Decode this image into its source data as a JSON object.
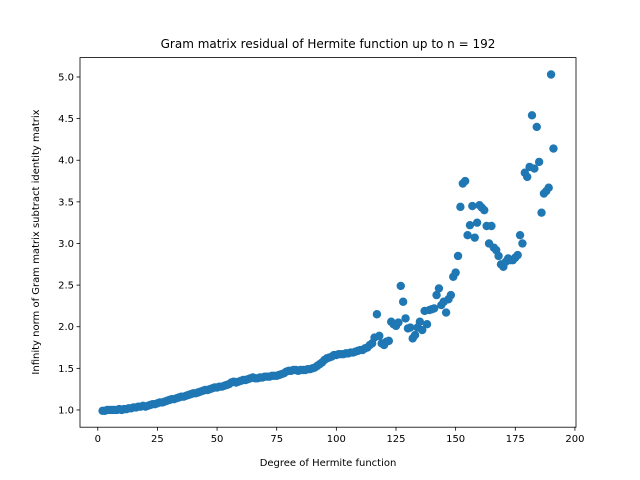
{
  "chart_data": {
    "type": "scatter",
    "title": "Gram matrix residual of Hermite function up to n = 192",
    "x_label": "Degree of Hermite function",
    "y_label": "Infinity norm of Gram matrix subtract identity matrix",
    "color": "#1f77b4",
    "x": [
      2,
      3,
      4,
      5,
      6,
      7,
      8,
      9,
      10,
      11,
      12,
      13,
      14,
      15,
      16,
      17,
      18,
      19,
      20,
      21,
      22,
      23,
      24,
      25,
      26,
      27,
      28,
      29,
      30,
      31,
      32,
      33,
      34,
      35,
      36,
      37,
      38,
      39,
      40,
      41,
      42,
      43,
      44,
      45,
      46,
      47,
      48,
      49,
      50,
      51,
      52,
      53,
      54,
      55,
      56,
      57,
      58,
      59,
      60,
      61,
      62,
      63,
      64,
      65,
      66,
      67,
      68,
      69,
      70,
      71,
      72,
      73,
      74,
      75,
      76,
      77,
      78,
      79,
      80,
      81,
      82,
      83,
      84,
      85,
      86,
      87,
      88,
      89,
      90,
      91,
      92,
      93,
      94,
      95,
      96,
      97,
      98,
      99,
      100,
      101,
      102,
      103,
      104,
      105,
      106,
      107,
      108,
      109,
      110,
      111,
      112,
      113,
      114,
      115,
      116,
      117,
      118,
      119,
      120,
      121,
      122,
      123,
      124,
      125,
      126,
      127,
      128,
      129,
      130,
      131,
      132,
      133,
      134,
      135,
      136,
      137,
      138,
      139,
      140,
      141,
      142,
      143,
      144,
      145,
      146,
      147,
      148,
      149,
      150,
      151,
      152,
      153,
      154,
      155,
      156,
      157,
      158,
      159,
      160,
      161,
      162,
      163,
      164,
      165,
      166,
      167,
      168,
      169,
      170,
      171,
      172,
      173,
      174,
      175,
      176,
      177,
      178,
      179,
      180,
      181,
      182,
      183,
      184,
      185,
      186,
      187,
      188,
      189,
      190,
      191
    ],
    "values": [
      0.99,
      0.99,
      1.0,
      1.0,
      1.0,
      1.0,
      1.0,
      1.01,
      1.0,
      1.01,
      1.01,
      1.02,
      1.02,
      1.03,
      1.03,
      1.04,
      1.04,
      1.05,
      1.04,
      1.05,
      1.06,
      1.07,
      1.07,
      1.08,
      1.09,
      1.09,
      1.1,
      1.11,
      1.12,
      1.13,
      1.13,
      1.14,
      1.15,
      1.16,
      1.16,
      1.17,
      1.18,
      1.19,
      1.2,
      1.2,
      1.21,
      1.22,
      1.23,
      1.24,
      1.24,
      1.25,
      1.26,
      1.27,
      1.27,
      1.28,
      1.28,
      1.29,
      1.3,
      1.31,
      1.33,
      1.34,
      1.33,
      1.34,
      1.35,
      1.36,
      1.36,
      1.37,
      1.38,
      1.39,
      1.38,
      1.38,
      1.39,
      1.39,
      1.4,
      1.4,
      1.4,
      1.41,
      1.41,
      1.41,
      1.42,
      1.43,
      1.44,
      1.46,
      1.47,
      1.47,
      1.48,
      1.48,
      1.47,
      1.48,
      1.48,
      1.48,
      1.49,
      1.49,
      1.5,
      1.51,
      1.53,
      1.55,
      1.57,
      1.6,
      1.62,
      1.63,
      1.64,
      1.66,
      1.66,
      1.67,
      1.67,
      1.67,
      1.68,
      1.68,
      1.69,
      1.69,
      1.7,
      1.71,
      1.72,
      1.72,
      1.74,
      1.75,
      1.78,
      1.8,
      1.87,
      2.15,
      1.89,
      1.8,
      1.78,
      1.82,
      1.83,
      2.06,
      2.03,
      2.01,
      2.05,
      2.49,
      2.3,
      2.1,
      1.98,
      1.99,
      1.86,
      1.9,
      1.99,
      2.06,
      1.96,
      2.19,
      2.03,
      2.2,
      2.21,
      2.22,
      2.38,
      2.46,
      2.26,
      2.3,
      2.17,
      2.33,
      2.38,
      2.6,
      2.65,
      2.85,
      3.44,
      3.72,
      3.75,
      3.1,
      3.22,
      3.45,
      3.07,
      3.25,
      3.46,
      3.43,
      3.4,
      3.21,
      3.0,
      3.21,
      2.95,
      2.92,
      2.85,
      2.75,
      2.72,
      2.78,
      2.82,
      2.8,
      2.8,
      2.83,
      2.86,
      3.1,
      3.0,
      3.85,
      3.8,
      3.92,
      4.54,
      3.9,
      4.4,
      3.98,
      3.37,
      3.6,
      3.63,
      3.67,
      5.03,
      4.14
    ],
    "xlim": [
      -7.45,
      200.45
    ],
    "ylim": [
      0.793,
      5.233
    ],
    "xticks": [
      0,
      25,
      50,
      75,
      100,
      125,
      150,
      175,
      200
    ],
    "yticks": [
      {
        "value": 1.0,
        "label": "1.0"
      },
      {
        "value": 1.5,
        "label": "1.5"
      },
      {
        "value": 2.0,
        "label": "2.0"
      },
      {
        "value": 2.5,
        "label": "2.5"
      },
      {
        "value": 3.0,
        "label": "3.0"
      },
      {
        "value": 3.5,
        "label": "3.5"
      },
      {
        "value": 4.0,
        "label": "4.0"
      },
      {
        "value": 4.5,
        "label": "4.5"
      },
      {
        "value": 5.0,
        "label": "5.0"
      }
    ]
  }
}
